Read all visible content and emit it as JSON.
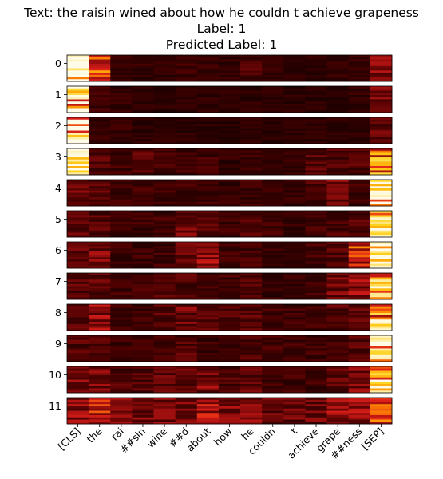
{
  "title": {
    "text_line": "Text: the raisin wined about how he couldn t achieve grapeness",
    "label_line": "Label: 1",
    "predicted_line": "Predicted Label: 1"
  },
  "chart_data": {
    "type": "heatmap",
    "title": "Text: the raisin wined about how he couldn t achieve grapeness\nLabel: 1\nPredicted Label: 1",
    "xlabel": "",
    "ylabel": "",
    "colormap": "hot",
    "x_tokens": [
      "[CLS]",
      "the",
      "rai",
      "##sin",
      "wine",
      "##d",
      "about",
      "how",
      "he",
      "couldn",
      "t",
      "achieve",
      "grape",
      "##ness",
      "[SEP]"
    ],
    "layers": [
      "0",
      "1",
      "2",
      "3",
      "4",
      "5",
      "6",
      "7",
      "8",
      "9",
      "10",
      "11"
    ],
    "rows_per_layer": 12,
    "intensity_description": "per-layer attention strength by token column (0-1, estimated)",
    "column_intensity": [
      [
        0.92,
        0.55,
        0.12,
        0.12,
        0.12,
        0.14,
        0.12,
        0.12,
        0.18,
        0.12,
        0.1,
        0.1,
        0.12,
        0.12,
        0.35
      ],
      [
        0.88,
        0.15,
        0.12,
        0.1,
        0.1,
        0.12,
        0.1,
        0.1,
        0.1,
        0.1,
        0.1,
        0.1,
        0.1,
        0.12,
        0.3
      ],
      [
        0.92,
        0.12,
        0.12,
        0.1,
        0.1,
        0.1,
        0.1,
        0.1,
        0.1,
        0.1,
        0.1,
        0.1,
        0.1,
        0.1,
        0.22
      ],
      [
        0.75,
        0.2,
        0.15,
        0.2,
        0.15,
        0.15,
        0.15,
        0.12,
        0.15,
        0.12,
        0.12,
        0.22,
        0.2,
        0.2,
        0.72
      ],
      [
        0.25,
        0.2,
        0.15,
        0.15,
        0.15,
        0.15,
        0.15,
        0.12,
        0.15,
        0.12,
        0.12,
        0.18,
        0.28,
        0.15,
        0.85
      ],
      [
        0.22,
        0.2,
        0.15,
        0.15,
        0.15,
        0.25,
        0.2,
        0.15,
        0.18,
        0.15,
        0.12,
        0.15,
        0.18,
        0.2,
        0.82
      ],
      [
        0.22,
        0.3,
        0.15,
        0.15,
        0.15,
        0.3,
        0.35,
        0.15,
        0.15,
        0.12,
        0.12,
        0.15,
        0.2,
        0.5,
        0.82
      ],
      [
        0.2,
        0.22,
        0.15,
        0.15,
        0.2,
        0.2,
        0.15,
        0.15,
        0.18,
        0.12,
        0.12,
        0.15,
        0.28,
        0.35,
        0.75
      ],
      [
        0.2,
        0.35,
        0.15,
        0.15,
        0.2,
        0.28,
        0.2,
        0.18,
        0.2,
        0.15,
        0.15,
        0.15,
        0.2,
        0.22,
        0.75
      ],
      [
        0.2,
        0.18,
        0.15,
        0.15,
        0.15,
        0.2,
        0.15,
        0.15,
        0.18,
        0.15,
        0.15,
        0.15,
        0.18,
        0.2,
        0.85
      ],
      [
        0.3,
        0.3,
        0.18,
        0.2,
        0.22,
        0.22,
        0.3,
        0.2,
        0.22,
        0.15,
        0.15,
        0.15,
        0.22,
        0.3,
        0.75
      ],
      [
        0.35,
        0.45,
        0.3,
        0.3,
        0.3,
        0.3,
        0.4,
        0.3,
        0.3,
        0.25,
        0.25,
        0.25,
        0.35,
        0.35,
        0.55
      ]
    ]
  },
  "colors": {
    "map_stops": [
      "#0b0000",
      "#4a0000",
      "#9a0e0e",
      "#e0201a",
      "#ff8a00",
      "#ffd21a",
      "#fffbe6"
    ]
  }
}
